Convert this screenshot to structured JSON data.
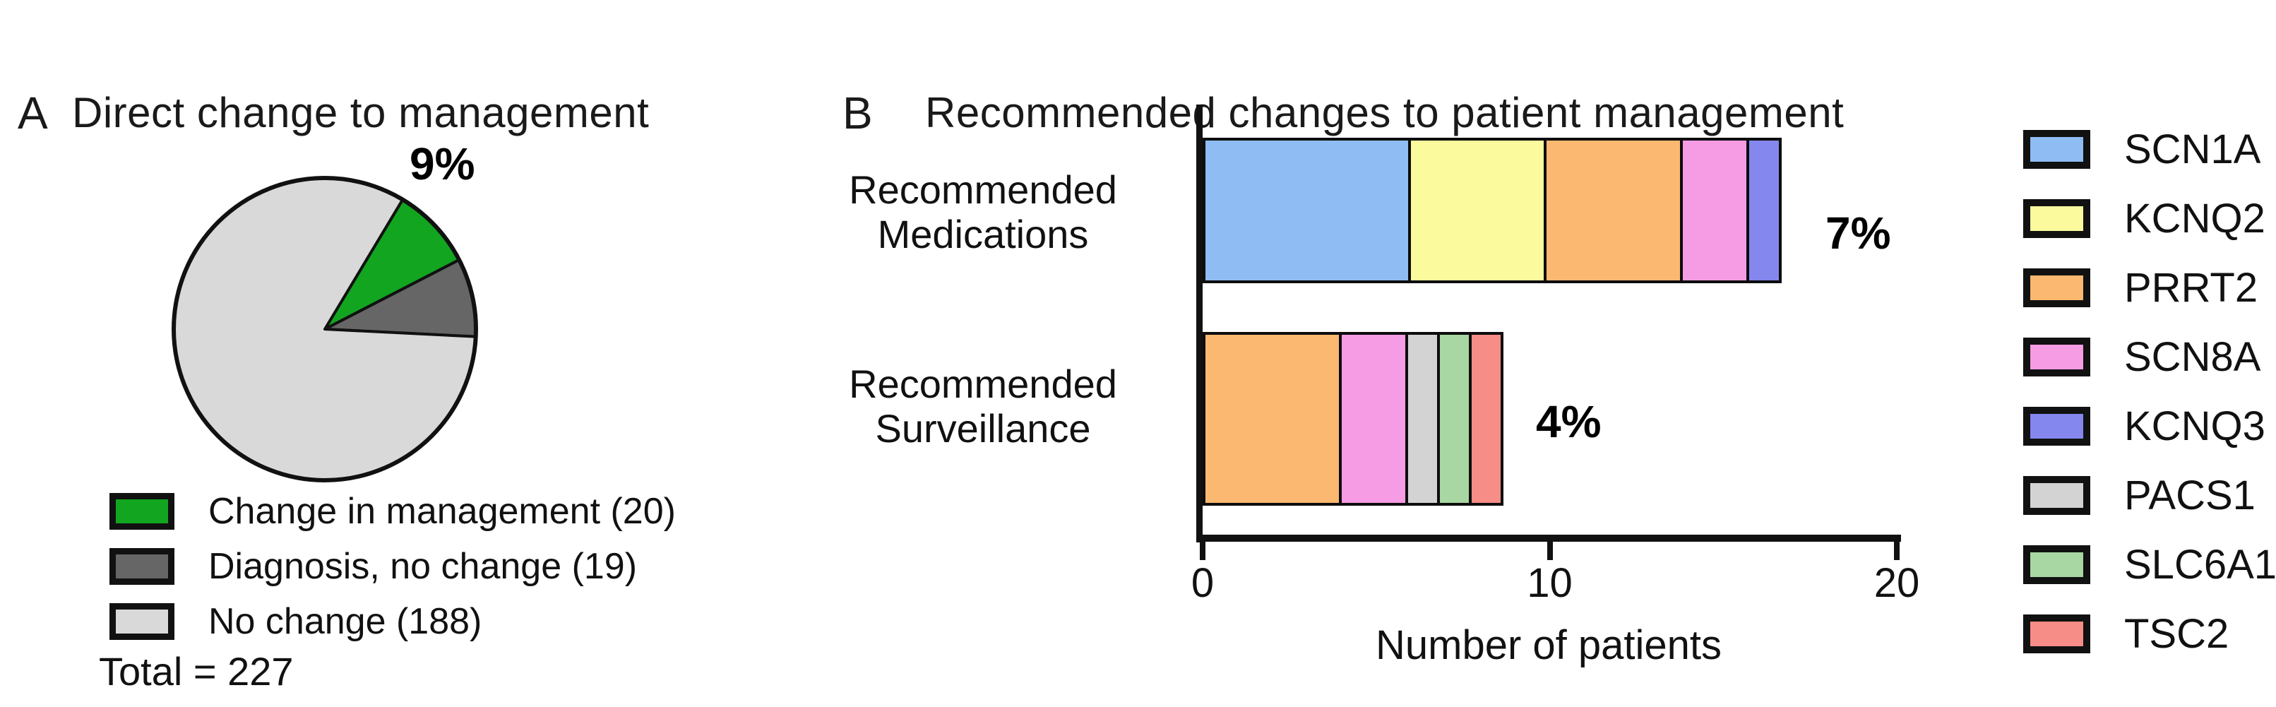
{
  "panel_a": {
    "letter": "A",
    "title": "Direct change to management",
    "pct_annotation": "9%",
    "total_label": "Total = 227"
  },
  "panel_b": {
    "letter": "B",
    "title": "Recommended changes to patient management",
    "row_labels": [
      "Recommended\nMedications",
      "Recommended\nSurveillance"
    ],
    "pct_labels": [
      "7%",
      "4%"
    ]
  },
  "chart_data": [
    {
      "type": "pie",
      "title": "Direct change to management",
      "labels": [
        "Change in management (20)",
        "Diagnosis, no change (19)",
        "No change (188)"
      ],
      "values": [
        20,
        19,
        188
      ],
      "colors": [
        "#12a51f",
        "#666666",
        "#d9d9d9"
      ],
      "total": 227,
      "total_label": "Total = 227",
      "annotation": "9%",
      "annotated_slice": "Change in management (20)",
      "start_angle_deg": 31,
      "outline_color": "#111111",
      "legend_position": "bottom"
    },
    {
      "type": "bar",
      "orientation": "horizontal",
      "stacked": true,
      "title": "Recommended changes to patient management",
      "categories": [
        "Recommended Medications",
        "Recommended Surveillance"
      ],
      "series": [
        {
          "name": "SCN1A",
          "color": "#8fbcf2",
          "values": [
            6,
            0
          ]
        },
        {
          "name": "KCNQ2",
          "color": "#fbfb9d",
          "values": [
            4,
            0
          ]
        },
        {
          "name": "PRRT2",
          "color": "#fbb870",
          "values": [
            4,
            4
          ]
        },
        {
          "name": "SCN8A",
          "color": "#f59ce5",
          "values": [
            2,
            2
          ]
        },
        {
          "name": "KCNQ3",
          "color": "#8487ee",
          "values": [
            1,
            0
          ]
        },
        {
          "name": "PACS1",
          "color": "#d3d3d3",
          "values": [
            0,
            1
          ]
        },
        {
          "name": "SLC6A1",
          "color": "#a8d7a3",
          "values": [
            0,
            1
          ]
        },
        {
          "name": "TSC2",
          "color": "#f68d86",
          "values": [
            0,
            1
          ]
        }
      ],
      "bar_totals": [
        17,
        9
      ],
      "pct_labels": [
        "7%",
        "4%"
      ],
      "xlabel": "Number of patients",
      "xlim": [
        0,
        20
      ],
      "xticks": [
        0,
        10,
        20
      ],
      "grid": false,
      "legend_position": "right"
    }
  ]
}
